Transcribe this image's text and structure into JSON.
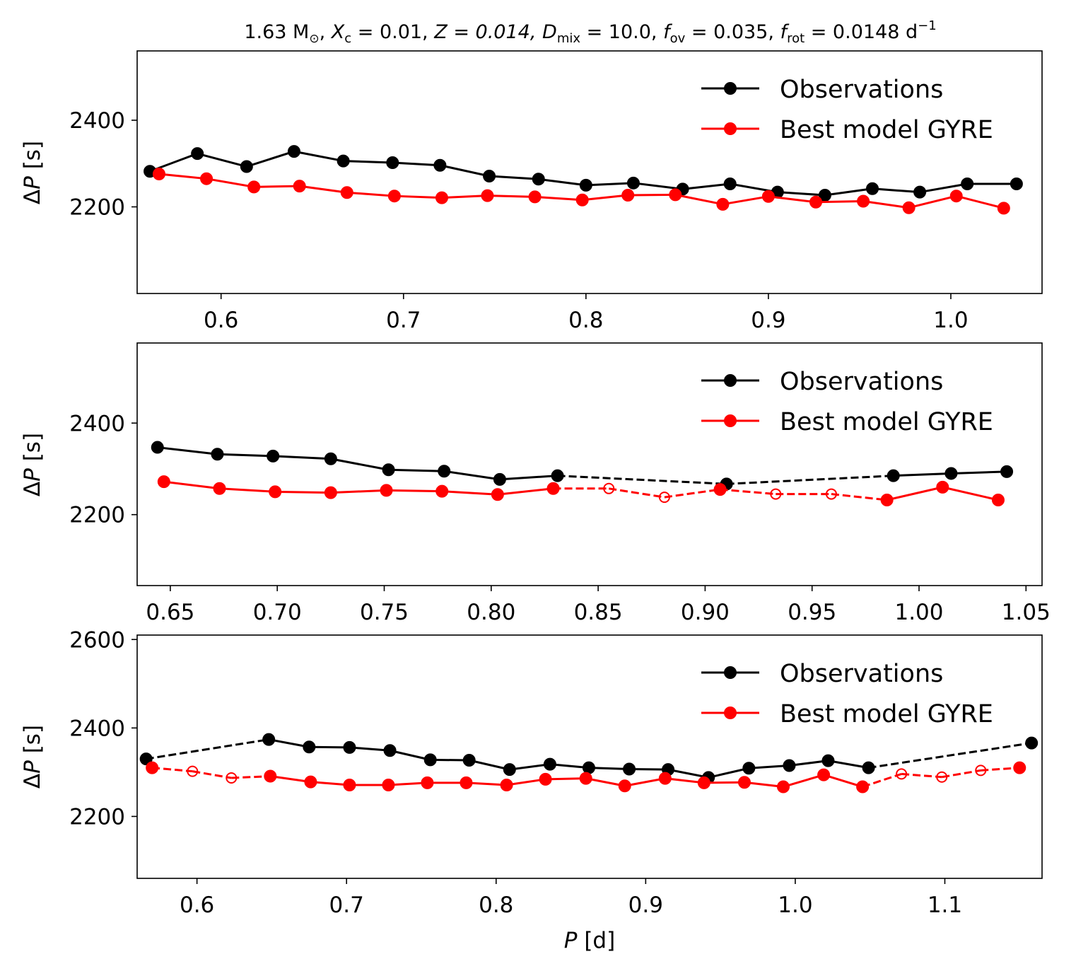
{
  "title": "1.63 M⊙, Xc = 0.01, Z = 0.014, Dmix = 10.0, fov = 0.035, frot = 0.0148 d⁻¹",
  "title_parts": {
    "mass": "1.63",
    "msun": "M",
    "sun_symbol": "⊙",
    "xc_sym": "X",
    "xc_sub": "c",
    "xc_val": " = 0.01,",
    "z_part": "Z = 0.014,",
    "dmix_sym": "D",
    "dmix_sub": "mix",
    "dmix_val": " = 10.0,",
    "fov_sym": "f",
    "fov_sub": "ov",
    "fov_val": " = 0.035,",
    "frot_sym": "f",
    "frot_sub": "rot",
    "frot_val": " = 0.0148 d",
    "frot_exp": "−1"
  },
  "ylabel": {
    "delta": "Δ",
    "sym": "P",
    "unit": " [s]"
  },
  "xlabel": {
    "sym": "P",
    "unit": " [d]"
  },
  "legend": {
    "obs": "Observations",
    "model": "Best model GYRE"
  },
  "colors": {
    "obs": "#000000",
    "model": "#ff0000"
  },
  "chart_data": [
    {
      "type": "line",
      "xlim": [
        0.554,
        1.05
      ],
      "ylim": [
        2000,
        2560
      ],
      "xticks": [
        0.6,
        0.7,
        0.8,
        0.9,
        1.0
      ],
      "xtick_labels": [
        "0.6",
        "0.7",
        "0.8",
        "0.9",
        "1.0"
      ],
      "yticks": [
        2200,
        2400
      ],
      "ytick_labels": [
        "2200",
        "2400"
      ],
      "legend_position": "upper right",
      "series": [
        {
          "name": "Observations",
          "x": [
            0.561,
            0.587,
            0.614,
            0.64,
            0.667,
            0.694,
            0.72,
            0.747,
            0.774,
            0.8,
            0.826,
            0.853,
            0.879,
            0.905,
            0.931,
            0.957,
            0.983,
            1.009,
            1.036
          ],
          "y": [
            2282,
            2323,
            2293,
            2328,
            2306,
            2302,
            2296,
            2271,
            2264,
            2250,
            2255,
            2241,
            2253,
            2234,
            2227,
            2242,
            2234,
            2253,
            2253
          ],
          "hollow": [
            false,
            false,
            false,
            false,
            false,
            false,
            false,
            false,
            false,
            false,
            false,
            false,
            false,
            false,
            false,
            false,
            false,
            false,
            false
          ],
          "dashed_segments": []
        },
        {
          "name": "Best model GYRE",
          "x": [
            0.566,
            0.592,
            0.618,
            0.643,
            0.669,
            0.695,
            0.721,
            0.746,
            0.772,
            0.798,
            0.823,
            0.849,
            0.875,
            0.9,
            0.926,
            0.952,
            0.977,
            1.003,
            1.029
          ],
          "y": [
            2276,
            2265,
            2246,
            2248,
            2233,
            2225,
            2221,
            2226,
            2223,
            2216,
            2227,
            2228,
            2206,
            2224,
            2211,
            2213,
            2198,
            2225,
            2197
          ],
          "hollow": [
            false,
            false,
            false,
            false,
            false,
            false,
            false,
            false,
            false,
            false,
            false,
            false,
            false,
            false,
            false,
            false,
            false,
            false,
            false
          ],
          "dashed_segments": []
        }
      ]
    },
    {
      "type": "line",
      "xlim": [
        0.6345,
        1.0575
      ],
      "ylim": [
        2045,
        2575
      ],
      "xticks": [
        0.65,
        0.7,
        0.75,
        0.8,
        0.85,
        0.9,
        0.95,
        1.0,
        1.05
      ],
      "xtick_labels": [
        "0.65",
        "0.70",
        "0.75",
        "0.80",
        "0.85",
        "0.90",
        "0.95",
        "1.00",
        "1.05"
      ],
      "yticks": [
        2200,
        2400
      ],
      "ytick_labels": [
        "2200",
        "2400"
      ],
      "legend_position": "upper right",
      "series": [
        {
          "name": "Observations",
          "x": [
            0.644,
            0.672,
            0.698,
            0.725,
            0.752,
            0.778,
            0.804,
            0.831,
            0.91,
            0.988,
            1.015,
            1.041
          ],
          "y": [
            2347,
            2332,
            2328,
            2322,
            2298,
            2295,
            2277,
            2285,
            2267,
            2285,
            2290,
            2294
          ],
          "hollow": [
            false,
            false,
            false,
            false,
            false,
            false,
            false,
            false,
            false,
            false,
            false,
            false
          ],
          "dashed_segments": [
            7,
            8
          ]
        },
        {
          "name": "Best model GYRE",
          "x": [
            0.647,
            0.673,
            0.699,
            0.725,
            0.751,
            0.777,
            0.803,
            0.829,
            0.855,
            0.881,
            0.907,
            0.933,
            0.959,
            0.985,
            1.011,
            1.037
          ],
          "y": [
            2272,
            2257,
            2250,
            2248,
            2253,
            2251,
            2244,
            2257,
            2257,
            2238,
            2255,
            2245,
            2245,
            2232,
            2260,
            2232
          ],
          "hollow": [
            false,
            false,
            false,
            false,
            false,
            false,
            false,
            false,
            true,
            true,
            false,
            true,
            true,
            false,
            false,
            false
          ],
          "dashed_segments": [
            7,
            8,
            9,
            10,
            11,
            12
          ]
        }
      ]
    },
    {
      "type": "line",
      "xlim": [
        0.56,
        1.165
      ],
      "ylim": [
        2060,
        2610
      ],
      "xticks": [
        0.6,
        0.7,
        0.8,
        0.9,
        1.0,
        1.1
      ],
      "xtick_labels": [
        "0.6",
        "0.7",
        "0.8",
        "0.9",
        "1.0",
        "1.1"
      ],
      "yticks": [
        2200,
        2400,
        2600
      ],
      "ytick_labels": [
        "2200",
        "2400",
        "2600"
      ],
      "legend_position": "upper right",
      "series": [
        {
          "name": "Observations",
          "x": [
            0.566,
            0.648,
            0.675,
            0.702,
            0.729,
            0.756,
            0.782,
            0.809,
            0.836,
            0.862,
            0.889,
            0.915,
            0.942,
            0.969,
            0.996,
            1.022,
            1.049,
            1.158
          ],
          "y": [
            2330,
            2374,
            2357,
            2356,
            2349,
            2328,
            2327,
            2306,
            2318,
            2310,
            2307,
            2306,
            2288,
            2309,
            2315,
            2326,
            2310,
            2366
          ],
          "hollow": [
            false,
            false,
            false,
            false,
            false,
            false,
            false,
            false,
            false,
            false,
            false,
            false,
            false,
            false,
            false,
            false,
            false,
            false
          ],
          "dashed_segments": [
            0,
            16
          ]
        },
        {
          "name": "Best model GYRE",
          "x": [
            0.57,
            0.597,
            0.623,
            0.649,
            0.676,
            0.702,
            0.728,
            0.754,
            0.78,
            0.807,
            0.833,
            0.86,
            0.886,
            0.913,
            0.939,
            0.966,
            0.992,
            1.019,
            1.045,
            1.071,
            1.098,
            1.124,
            1.15
          ],
          "y": [
            2310,
            2302,
            2287,
            2291,
            2278,
            2271,
            2271,
            2276,
            2276,
            2271,
            2284,
            2286,
            2269,
            2286,
            2276,
            2277,
            2267,
            2294,
            2267,
            2296,
            2289,
            2304,
            2310
          ],
          "hollow": [
            false,
            true,
            true,
            false,
            false,
            false,
            false,
            false,
            false,
            false,
            false,
            false,
            false,
            false,
            false,
            false,
            false,
            false,
            false,
            true,
            true,
            true,
            false
          ],
          "dashed_segments": [
            0,
            1,
            2,
            18,
            19,
            20,
            21
          ]
        }
      ]
    }
  ]
}
